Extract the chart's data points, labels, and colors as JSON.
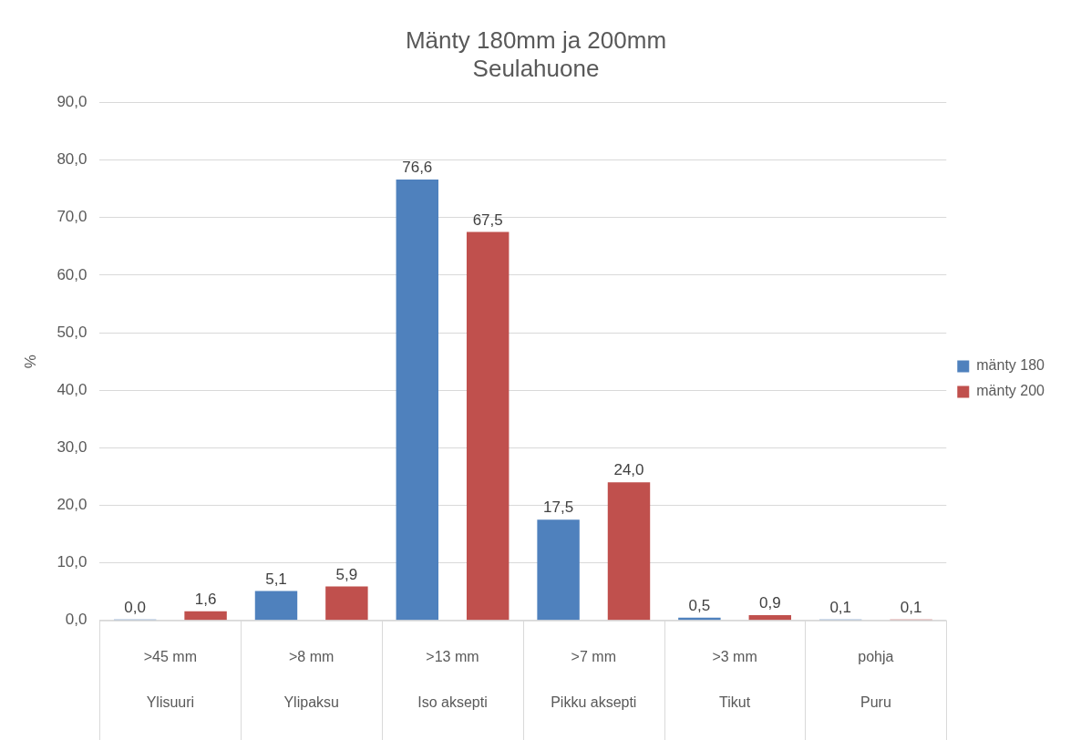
{
  "chart_data": {
    "type": "bar",
    "title": "Mänty 180mm ja 200mm",
    "subtitle": "Seulahuone",
    "ylabel": "%",
    "categories": [
      ">45 mm\nYlisuuri",
      ">8 mm\nYlipaksu",
      ">13 mm\nIso aksepti",
      ">7 mm\nPikku aksepti",
      ">3 mm\nTikut",
      "pohja\nPuru"
    ],
    "series": [
      {
        "name": "mänty 180",
        "color": "#4f81bd",
        "values": [
          0.0,
          5.1,
          76.6,
          17.5,
          0.5,
          0.1
        ],
        "value_labels": [
          "0,0",
          "5,1",
          "76,6",
          "17,5",
          "0,5",
          "0,1"
        ]
      },
      {
        "name": "mänty 200",
        "color": "#c0504d",
        "values": [
          1.6,
          5.9,
          67.5,
          24.0,
          0.9,
          0.1
        ],
        "value_labels": [
          "1,6",
          "5,9",
          "67,5",
          "24,0",
          "0,9",
          "0,1"
        ]
      }
    ],
    "ylim": [
      0,
      90
    ],
    "yticks": [
      {
        "value": 0,
        "label": "0,0"
      },
      {
        "value": 10,
        "label": "10,0"
      },
      {
        "value": 20,
        "label": "20,0"
      },
      {
        "value": 30,
        "label": "30,0"
      },
      {
        "value": 40,
        "label": "40,0"
      },
      {
        "value": 50,
        "label": "50,0"
      },
      {
        "value": 60,
        "label": "60,0"
      },
      {
        "value": 70,
        "label": "70,0"
      },
      {
        "value": 80,
        "label": "80,0"
      },
      {
        "value": 90,
        "label": "90,0"
      }
    ],
    "grid": "y",
    "legend": "right"
  }
}
